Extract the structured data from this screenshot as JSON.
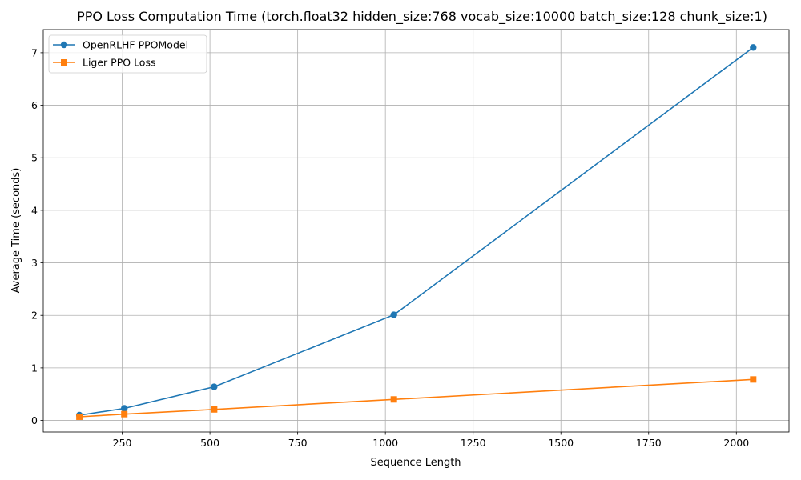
{
  "chart_data": {
    "type": "line",
    "title": "PPO Loss Computation Time (torch.float32 hidden_size:768 vocab_size:10000 batch_size:128 chunk_size:1)",
    "xlabel": "Sequence Length",
    "ylabel": "Average Time (seconds)",
    "xlim": [
      25,
      2150
    ],
    "ylim": [
      -0.22,
      7.44
    ],
    "xticks": [
      250,
      500,
      750,
      1000,
      1250,
      1500,
      1750,
      2000
    ],
    "yticks": [
      0,
      1,
      2,
      3,
      4,
      5,
      6,
      7
    ],
    "grid": true,
    "legend_position": "top-left",
    "x": [
      128,
      256,
      512,
      1024,
      2048
    ],
    "series": [
      {
        "name": "OpenRLHF PPOModel",
        "color": "#1f77b4",
        "marker": "circle",
        "values": [
          0.1,
          0.23,
          0.64,
          2.01,
          7.1
        ]
      },
      {
        "name": "Liger PPO Loss",
        "color": "#ff7f0e",
        "marker": "square",
        "values": [
          0.07,
          0.12,
          0.21,
          0.4,
          0.78
        ]
      }
    ]
  }
}
